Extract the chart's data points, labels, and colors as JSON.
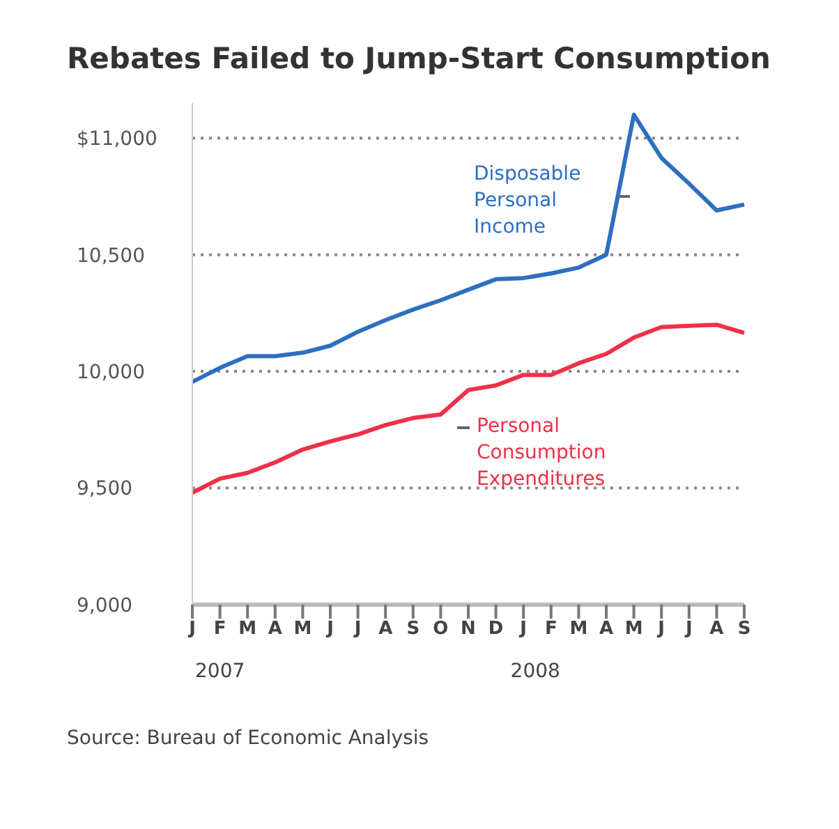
{
  "chart_data": {
    "type": "line",
    "title": "Rebates Failed to Jump-Start Consumption",
    "categories": [
      "J",
      "F",
      "M",
      "A",
      "M",
      "J",
      "J",
      "A",
      "S",
      "O",
      "N",
      "D",
      "J",
      "F",
      "M",
      "A",
      "M",
      "J",
      "J",
      "A",
      "S"
    ],
    "series": [
      {
        "name": "Disposable Personal Income",
        "color": "#2e6fc0",
        "values": [
          9955,
          10015,
          10065,
          10065,
          10080,
          10110,
          10170,
          10220,
          10265,
          10305,
          10350,
          10395,
          10400,
          10420,
          10445,
          10500,
          11100,
          10915,
          10805,
          10690,
          10715
        ]
      },
      {
        "name": "Personal Consumption Expenditures",
        "color": "#ee3049",
        "values": [
          9480,
          9540,
          9565,
          9610,
          9665,
          9700,
          9730,
          9770,
          9800,
          9815,
          9920,
          9940,
          9985,
          9985,
          10035,
          10075,
          10145,
          10190,
          10195,
          10200,
          10165
        ]
      }
    ],
    "ylim": [
      9000,
      11150
    ],
    "yticks": [
      {
        "value": 9000,
        "label": "9,000"
      },
      {
        "value": 9500,
        "label": "9,500"
      },
      {
        "value": 10000,
        "label": "10,000"
      },
      {
        "value": 10500,
        "label": "10,500"
      },
      {
        "value": 11000,
        "label": "$11,000"
      }
    ],
    "grid": "y",
    "legend": false,
    "marker": "none",
    "line_style": "solid",
    "annotations": [
      "2007",
      "2008",
      "Source: Bureau of Economic Analysis"
    ]
  }
}
